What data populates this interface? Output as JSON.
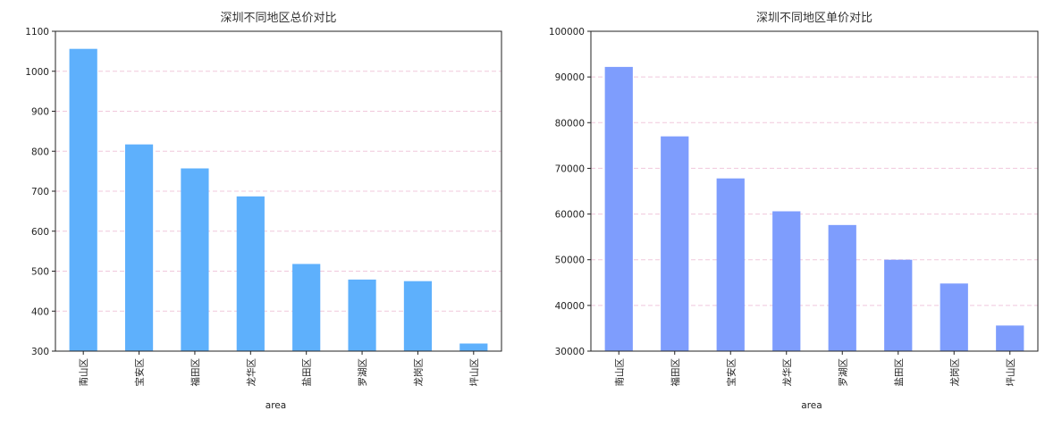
{
  "chart_data": [
    {
      "type": "bar",
      "title": "深圳不同地区总价对比",
      "xlabel": "area",
      "ylabel": "",
      "categories": [
        "南山区",
        "宝安区",
        "福田区",
        "龙华区",
        "盐田区",
        "罗湖区",
        "龙岗区",
        "坪山区"
      ],
      "values": [
        1056,
        817,
        757,
        687,
        518,
        479,
        475,
        319
      ],
      "ylim": [
        300,
        1100
      ],
      "yticks": [
        300,
        400,
        500,
        600,
        700,
        800,
        900,
        1000,
        1100
      ],
      "grid": "horizontal-dashed",
      "bar_color": "#5eb0fc",
      "grid_color": "#f0c8dc"
    },
    {
      "type": "bar",
      "title": "深圳不同地区单价对比",
      "xlabel": "area",
      "ylabel": "",
      "categories": [
        "南山区",
        "福田区",
        "宝安区",
        "龙华区",
        "罗湖区",
        "盐田区",
        "龙岗区",
        "坪山区"
      ],
      "values": [
        92200,
        77000,
        67800,
        60600,
        57600,
        50000,
        44800,
        35600
      ],
      "ylim": [
        30000,
        100000
      ],
      "yticks": [
        30000,
        40000,
        50000,
        60000,
        70000,
        80000,
        90000,
        100000
      ],
      "grid": "horizontal-dashed",
      "bar_color": "#7e9dfd",
      "grid_color": "#f0c8dc"
    }
  ]
}
